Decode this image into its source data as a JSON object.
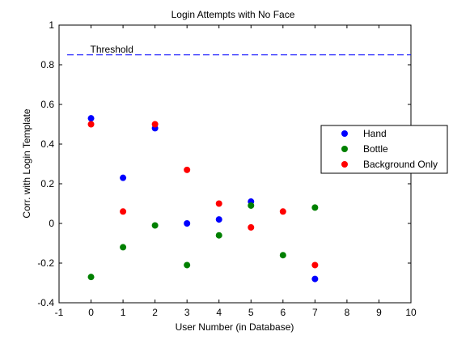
{
  "chart_data": {
    "type": "scatter",
    "title": "Login Attempts with No Face",
    "xlabel": "User Number (in Database)",
    "ylabel": "Corr. with Login Template",
    "xlim": [
      -1,
      10
    ],
    "ylim": [
      -0.4,
      1
    ],
    "xticks": [
      -1,
      0,
      1,
      2,
      3,
      4,
      5,
      6,
      7,
      8,
      9,
      10
    ],
    "yticks": [
      -0.4,
      -0.2,
      0,
      0.2,
      0.4,
      0.6,
      0.8,
      1
    ],
    "ytick_labels": [
      "-0.4",
      "-0.2",
      "0",
      "0.2",
      "0.4",
      "0.6",
      "0.8",
      "1"
    ],
    "grid": false,
    "legend_position": "right",
    "series": [
      {
        "name": "Hand",
        "color": "#0000ff",
        "points": [
          [
            0,
            0.53
          ],
          [
            1,
            0.23
          ],
          [
            2,
            0.48
          ],
          [
            3,
            0.0
          ],
          [
            4,
            0.02
          ],
          [
            5,
            0.11
          ],
          [
            7,
            -0.28
          ]
        ]
      },
      {
        "name": "Bottle",
        "color": "#008000",
        "points": [
          [
            0,
            -0.27
          ],
          [
            1,
            -0.12
          ],
          [
            2,
            -0.01
          ],
          [
            3,
            -0.21
          ],
          [
            4,
            -0.06
          ],
          [
            5,
            0.09
          ],
          [
            6,
            -0.16
          ],
          [
            7,
            0.08
          ]
        ]
      },
      {
        "name": "Background Only",
        "color": "#ff0000",
        "points": [
          [
            0,
            0.5
          ],
          [
            1,
            0.06
          ],
          [
            2,
            0.5
          ],
          [
            3,
            0.27
          ],
          [
            4,
            0.1
          ],
          [
            5,
            -0.02
          ],
          [
            6,
            0.06
          ],
          [
            7,
            -0.21
          ]
        ]
      }
    ],
    "threshold": {
      "label": "Threshold",
      "value": 0.85,
      "color": "#0000ff",
      "style": "dashed"
    }
  }
}
